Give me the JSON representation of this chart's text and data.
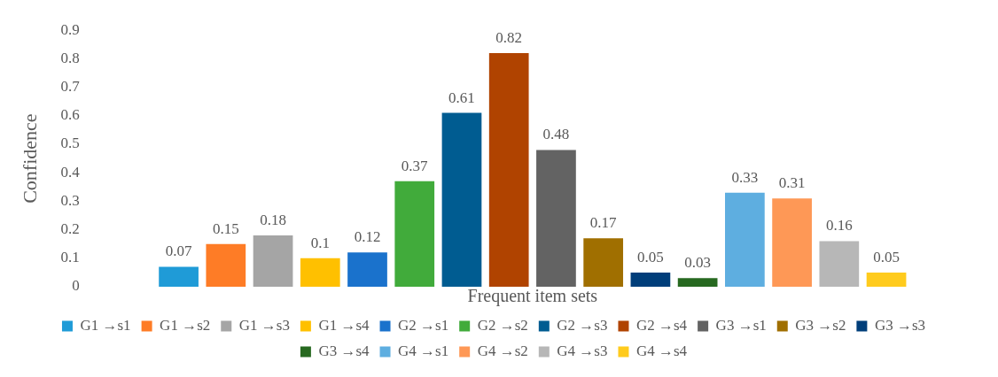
{
  "chart_data": {
    "type": "bar",
    "xlabel": "Frequent item sets",
    "ylabel": "Confidence",
    "categories": [
      null
    ],
    "ylim": [
      0,
      0.9
    ],
    "yticks": [
      0,
      0.1,
      0.2,
      0.3,
      0.4,
      0.5,
      0.6,
      0.7,
      0.8,
      0.9
    ],
    "grid": false,
    "legend": "bottom",
    "data_labels": true,
    "series": [
      {
        "name": "G1 →s1",
        "color": "#1f9bd7",
        "values": [
          0.07
        ]
      },
      {
        "name": "G1 →s2",
        "color": "#fe7c26",
        "values": [
          0.15
        ]
      },
      {
        "name": "G1 →s3",
        "color": "#a5a5a5",
        "values": [
          0.18
        ]
      },
      {
        "name": "G1 →s4",
        "color": "#ffc000",
        "values": [
          0.1
        ]
      },
      {
        "name": "G2 →s1",
        "color": "#1a72cc",
        "values": [
          0.12
        ]
      },
      {
        "name": "G2 →s2",
        "color": "#41ab3b",
        "values": [
          0.37
        ]
      },
      {
        "name": "G2 →s3",
        "color": "#005c91",
        "values": [
          0.61
        ]
      },
      {
        "name": "G2 →s4",
        "color": "#b04300",
        "values": [
          0.82
        ]
      },
      {
        "name": "G3 →s1",
        "color": "#636363",
        "values": [
          0.48
        ]
      },
      {
        "name": "G3 →s2",
        "color": "#a06f00",
        "values": [
          0.17
        ]
      },
      {
        "name": "G3 →s3",
        "color": "#003e7a",
        "values": [
          0.05
        ]
      },
      {
        "name": "G3 →s4",
        "color": "#276920",
        "values": [
          0.03
        ]
      },
      {
        "name": "G4 →s1",
        "color": "#5eaee0",
        "values": [
          0.33
        ]
      },
      {
        "name": "G4 →s2",
        "color": "#fe9856",
        "values": [
          0.31
        ]
      },
      {
        "name": "G4 →s3",
        "color": "#b7b7b7",
        "values": [
          0.16
        ]
      },
      {
        "name": "G4 →s4",
        "color": "#ffcb1d",
        "values": [
          0.05
        ]
      }
    ]
  }
}
